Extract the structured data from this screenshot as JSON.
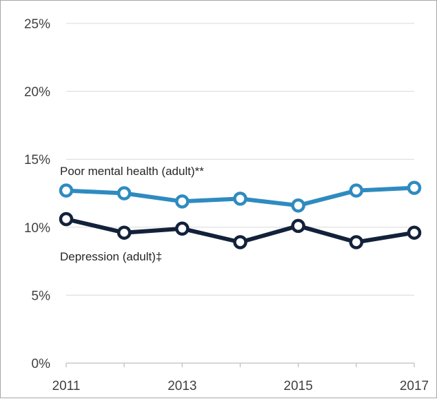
{
  "chart_data": {
    "type": "line",
    "title": "",
    "xlabel": "",
    "ylabel": "",
    "x": [
      2011,
      2012,
      2013,
      2014,
      2015,
      2016,
      2017
    ],
    "x_tick_labels": [
      "2011",
      "2013",
      "2015",
      "2017"
    ],
    "x_tick_values": [
      2011,
      2013,
      2015,
      2017
    ],
    "ylim": [
      0,
      25
    ],
    "y_ticks": [
      0,
      5,
      10,
      15,
      20,
      25
    ],
    "y_tick_labels": [
      "0%",
      "5%",
      "10%",
      "15%",
      "20%",
      "25%"
    ],
    "grid": "horizontal",
    "series": [
      {
        "name": "Poor mental health (adult)**",
        "color": "#2e8bc0",
        "values": [
          12.7,
          12.5,
          11.9,
          12.1,
          11.6,
          12.7,
          12.9
        ]
      },
      {
        "name": "Depression (adult)‡",
        "color": "#13213a",
        "values": [
          10.6,
          9.6,
          9.9,
          8.9,
          10.1,
          8.9,
          9.6
        ]
      }
    ]
  }
}
